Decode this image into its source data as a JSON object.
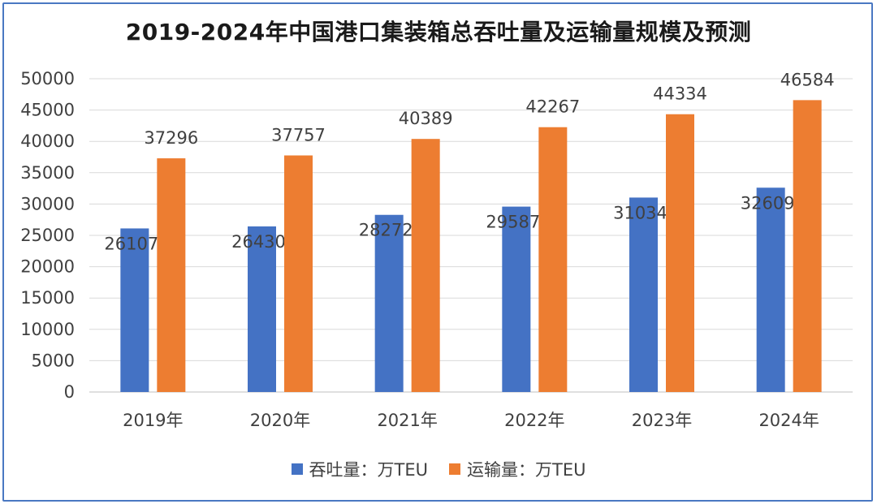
{
  "chart_data": {
    "type": "bar",
    "title": "2019-2024年中国港口集装箱总吞吐量及运输量规模及预测",
    "categories": [
      "2019年",
      "2020年",
      "2021年",
      "2022年",
      "2023年",
      "2024年"
    ],
    "series": [
      {
        "name": "吞吐量：万TEU",
        "color": "#4472c4",
        "values": [
          26107,
          26430,
          28272,
          29587,
          31034,
          32609
        ]
      },
      {
        "name": "运输量：万TEU",
        "color": "#ed7d31",
        "values": [
          37296,
          37757,
          40389,
          42267,
          44334,
          46584
        ]
      }
    ],
    "ylim": [
      0,
      50000
    ],
    "ytick_step": 5000,
    "grid": true,
    "legend": "bottom"
  }
}
